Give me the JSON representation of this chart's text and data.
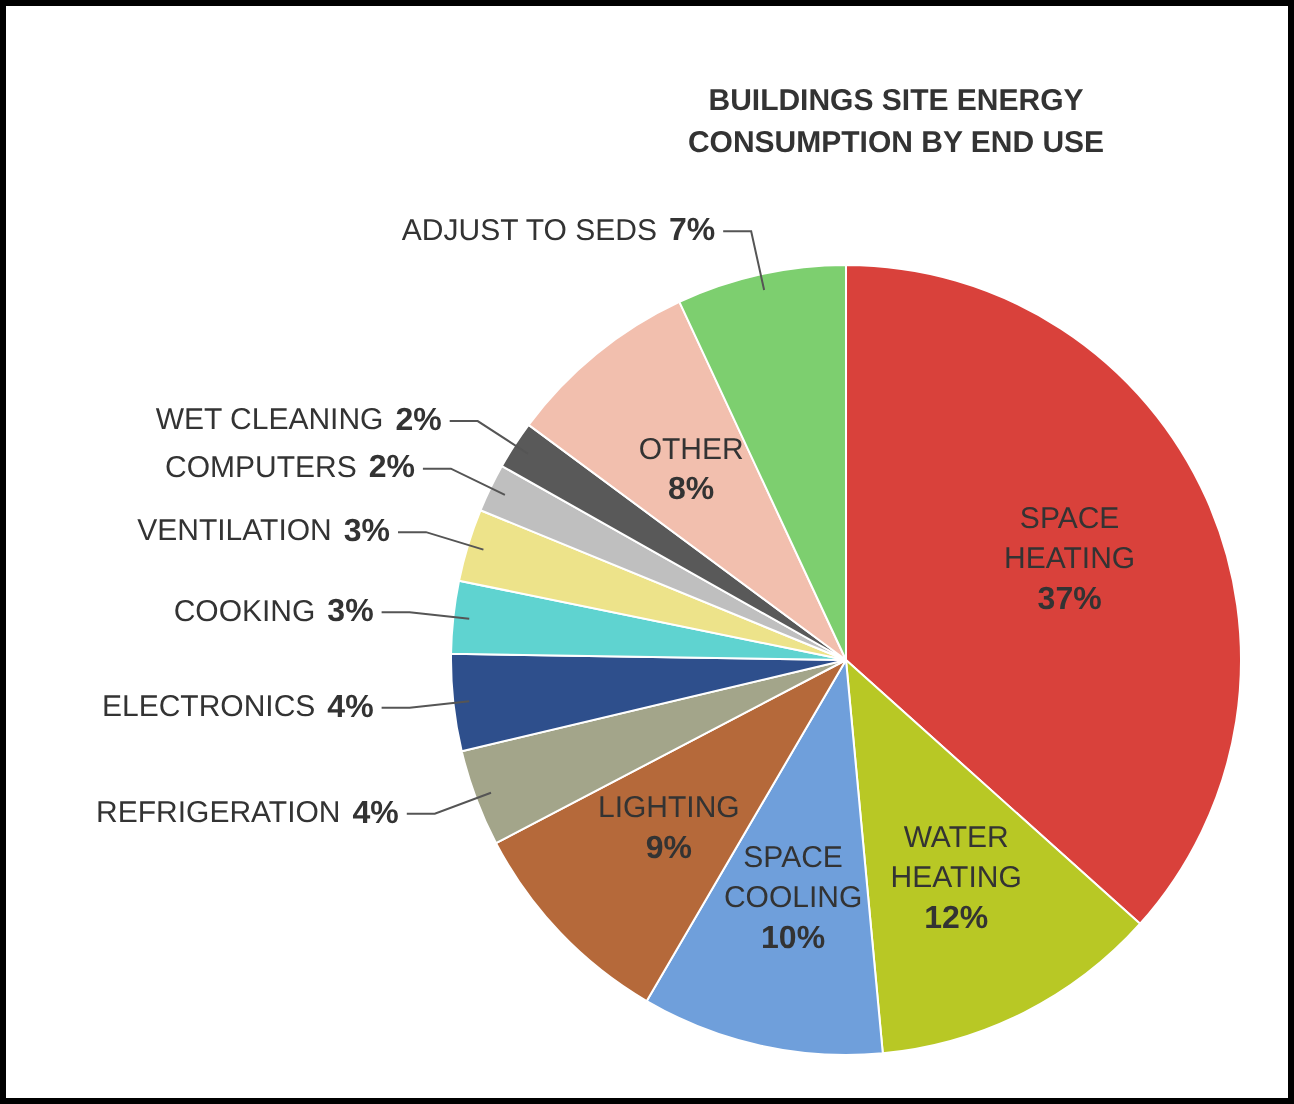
{
  "chart_data": {
    "type": "pie",
    "title": "BUILDINGS SITE ENERGY CONSUMPTION BY END USE",
    "categories": [
      "SPACE HEATING",
      "WATER HEATING",
      "SPACE COOLING",
      "LIGHTING",
      "REFRIGERATION",
      "ELECTRONICS",
      "COOKING",
      "VENTILATION",
      "COMPUTERS",
      "WET CLEANING",
      "OTHER",
      "ADJUST TO SEDS"
    ],
    "values": [
      37,
      12,
      10,
      9,
      4,
      4,
      3,
      3,
      2,
      2,
      8,
      7
    ],
    "value_labels": [
      "37%",
      "12%",
      "10%",
      "9%",
      "4%",
      "4%",
      "3%",
      "3%",
      "2%",
      "2%",
      "8%",
      "7%"
    ],
    "colors": [
      "#d9413b",
      "#b8c825",
      "#6f9fdb",
      "#b5693a",
      "#a3a58a",
      "#2e4f8c",
      "#5fd3d0",
      "#ede38a",
      "#bfbfbf",
      "#595959",
      "#f2bfae",
      "#7dcf6f"
    ],
    "legend": false
  }
}
